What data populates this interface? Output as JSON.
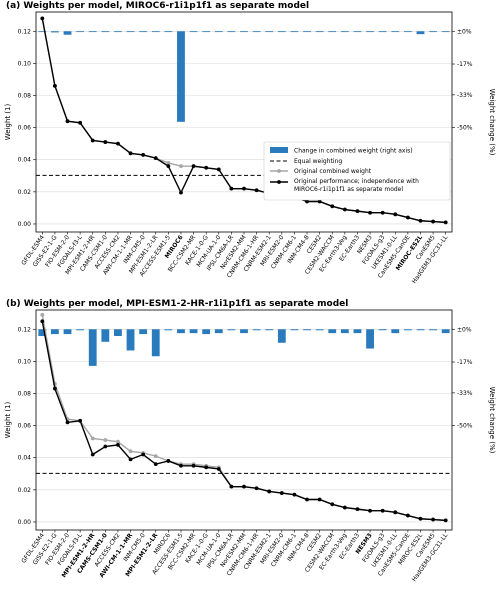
{
  "chart_data": [
    {
      "type": "bar+line",
      "title": "(a) Weights per model, MIROC6-r1i1p1f1 as separate model",
      "ylabel": "Weight (1)",
      "ylabel_right": "Weight change (%)",
      "ylim": [
        -0.005,
        0.132
      ],
      "yticks": [
        0.0,
        0.02,
        0.04,
        0.06,
        0.08,
        0.1,
        0.12
      ],
      "ytick_labels": [
        "0.00",
        "0.02",
        "0.04",
        "0.06",
        "0.08",
        "0.10",
        "0.12"
      ],
      "right_ticks": [
        {
          "label": "±0%",
          "pct": 0
        },
        {
          "label": "-17%",
          "pct": -17
        },
        {
          "label": "-33%",
          "pct": -33
        },
        {
          "label": "-50%",
          "pct": -50
        }
      ],
      "bold_models": [
        "MIROC6",
        "MIROC-ES2L"
      ],
      "categories": [
        "GFDL-ESM4",
        "GISS-E2-1-G",
        "FIO-ESM-2-0",
        "FGOALS-f3-L",
        "MPI-ESM1-2-HR",
        "CAMS-CSM1-0",
        "ACCESS-CM2",
        "AWI-CM-1-1-MR",
        "INM-CM5-0",
        "MPI-ESM1-2-LR",
        "ACCESS-ESM1-5",
        "MIROC6",
        "BCC-CSM2-MR",
        "KACE-1-0-G",
        "MCM-UA-1-0",
        "IPSL-CM6A-LR",
        "NorESM2-MM",
        "CNRM-CM6-1-HR",
        "CNRM-ESM2-1",
        "MRI-ESM2-0",
        "CNRM-CM6-1",
        "INM-CM4-8",
        "CESM2",
        "CESM2-WACCM",
        "EC-Earth3-Veg",
        "EC-Earth3",
        "NESM3",
        "FGOALS-g3",
        "UKESM1-0-LL",
        "CanESM5-CanOE",
        "MIROC-ES2L",
        "CanESM5",
        "HadGEM3-GC31-LL"
      ],
      "original_weight": [
        0.128,
        0.086,
        0.064,
        0.063,
        0.052,
        0.051,
        0.05,
        0.044,
        0.043,
        0.041,
        0.038,
        0.036,
        0.036,
        0.035,
        0.034,
        0.022,
        0.022,
        0.021,
        0.019,
        0.018,
        0.017,
        0.014,
        0.014,
        0.011,
        0.009,
        0.008,
        0.007,
        0.007,
        0.006,
        0.004,
        0.002,
        0.0015,
        0.001
      ],
      "new_weight": [
        0.128,
        0.086,
        0.064,
        0.063,
        0.052,
        0.051,
        0.05,
        0.044,
        0.043,
        0.041,
        0.036,
        0.0195,
        0.036,
        0.035,
        0.034,
        0.022,
        0.022,
        0.021,
        0.019,
        0.018,
        0.017,
        0.014,
        0.014,
        0.011,
        0.009,
        0.008,
        0.007,
        0.007,
        0.006,
        0.004,
        0.002,
        0.0015,
        0.001
      ],
      "change_pct": [
        0,
        -0.6,
        -1.8,
        0,
        0,
        0,
        0,
        0,
        0,
        0,
        0,
        -47,
        0,
        0,
        0,
        0,
        0,
        0,
        0,
        0,
        0,
        0,
        0,
        0,
        0,
        0,
        -0.4,
        0,
        0,
        0,
        -1.5,
        0,
        0
      ],
      "equal_weighting": 0.0303,
      "legend": {
        "position": "center-right",
        "items": [
          "Change in combined weight (right axis)",
          "Equal weighting",
          "Original combined weight",
          "Original performance; independence with",
          "MIROC6-r1i1p1f1 as separate model"
        ]
      }
    },
    {
      "type": "bar+line",
      "title": "(b) Weights per model, MPI-ESM1-2-HR-r1i1p1f1 as separate model",
      "ylabel": "Weight (1)",
      "ylabel_right": "Weight change (%)",
      "ylim": [
        -0.005,
        0.132
      ],
      "yticks": [
        0.0,
        0.02,
        0.04,
        0.06,
        0.08,
        0.1,
        0.12
      ],
      "ytick_labels": [
        "0.00",
        "0.02",
        "0.04",
        "0.06",
        "0.08",
        "0.10",
        "0.12"
      ],
      "right_ticks": [
        {
          "label": "±0%",
          "pct": 0
        },
        {
          "label": "-17%",
          "pct": -17
        },
        {
          "label": "-33%",
          "pct": -33
        },
        {
          "label": "-50%",
          "pct": -50
        }
      ],
      "bold_models": [
        "MPI-ESM1-2-HR",
        "CAMS-CSM1-0",
        "AWI-CM-1-1-MR",
        "MPI-ESM1-2-LR",
        "NESM3"
      ],
      "categories": [
        "GFDL-ESM4",
        "GISS-E2-1-G",
        "FIO-ESM-2-0",
        "FGOALS-f3-L",
        "MPI-ESM1-2-HR",
        "CAMS-CSM1-0",
        "ACCESS-CM2",
        "AWI-CM-1-1-MR",
        "INM-CM5-0",
        "MPI-ESM1-2-LR",
        "MIROC6",
        "ACCESS-ESM1-5",
        "BCC-CSM2-MR",
        "KACE-1-0-G",
        "MCM-UA-1-0",
        "IPSL-CM6A-LR",
        "NorESM2-MM",
        "CNRM-CM6-1-HR",
        "CNRM-ESM2-1",
        "MRI-ESM2-0",
        "CNRM-CM6-1",
        "INM-CM4-8",
        "CESM2",
        "CESM2-WACCM",
        "EC-Earth3-Veg",
        "EC-Earth3",
        "NESM3",
        "FGOALS-g3",
        "UKESM1-0-LL",
        "CanESM5-CanOE",
        "MIROC-ES2L",
        "CanESM5",
        "HadGEM3-GC31-LL"
      ],
      "original_weight": [
        0.129,
        0.086,
        0.064,
        0.063,
        0.052,
        0.051,
        0.05,
        0.044,
        0.043,
        0.041,
        0.038,
        0.036,
        0.036,
        0.035,
        0.034,
        0.022,
        0.022,
        0.021,
        0.019,
        0.018,
        0.017,
        0.014,
        0.014,
        0.011,
        0.009,
        0.008,
        0.007,
        0.007,
        0.006,
        0.004,
        0.002,
        0.0015,
        0.001
      ],
      "new_weight": [
        0.125,
        0.083,
        0.062,
        0.063,
        0.042,
        0.047,
        0.048,
        0.039,
        0.042,
        0.036,
        0.038,
        0.035,
        0.035,
        0.034,
        0.033,
        0.022,
        0.022,
        0.021,
        0.019,
        0.018,
        0.017,
        0.014,
        0.014,
        0.011,
        0.009,
        0.008,
        0.007,
        0.007,
        0.006,
        0.004,
        0.002,
        0.0015,
        0.001
      ],
      "change_pct": [
        -3.5,
        -2.5,
        -2.5,
        -0.5,
        -19,
        -6.5,
        -3.5,
        -11,
        -2.5,
        -14,
        -0.5,
        -2,
        -2,
        -2.5,
        -2,
        -0.5,
        -2,
        -0.5,
        -0.5,
        -7,
        -0.5,
        -0.5,
        -0.5,
        -2,
        -2,
        -2,
        -10,
        -0.5,
        -2,
        -0.5,
        -0.5,
        -0.5,
        -2
      ],
      "equal_weighting": 0.0303
    }
  ],
  "colors": {
    "bar": "#2a7bbd",
    "original_line": "#a6a6a6",
    "new_line": "#000000",
    "equal_line": "#000000",
    "grid": "#d9d9d9"
  }
}
